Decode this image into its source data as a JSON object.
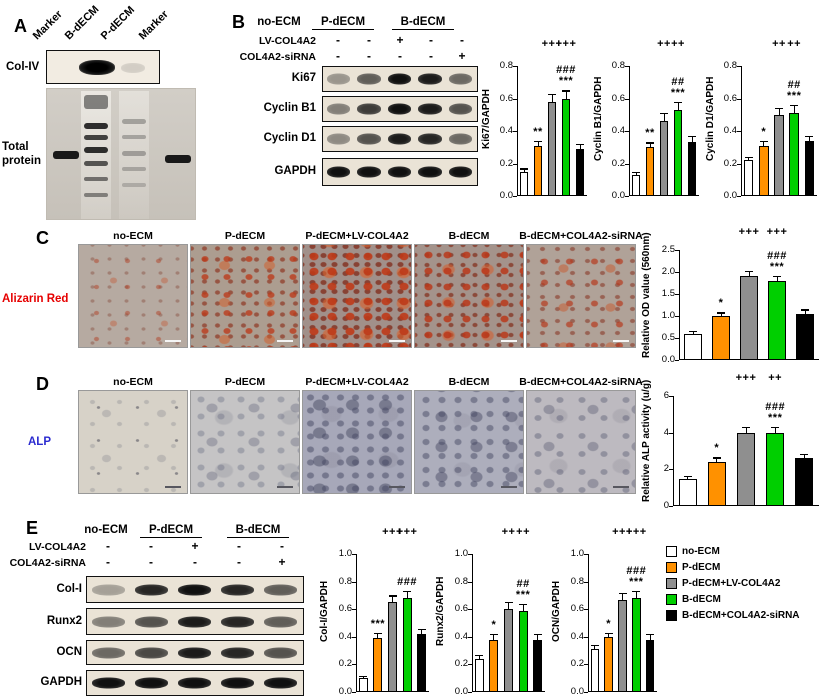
{
  "figure": {
    "conditions": [
      "no-ECM",
      "P-dECM",
      "P-dECM+LV-COL4A2",
      "B-dECM",
      "B-dECM+COL4A2-siRNA"
    ],
    "bar_colors": [
      "#ffffff",
      "#ff9100",
      "#8f8f8f",
      "#00cf00",
      "#000000"
    ],
    "panelA": {
      "label": "A",
      "lanes": [
        "Marker",
        "B-dECM",
        "P-dECM",
        "Marker"
      ],
      "blot_label": "Col-IV",
      "gel_label": "Total protein"
    },
    "panelB": {
      "label": "B",
      "group_headers": [
        "no-ECM",
        "P-dECM",
        "B-dECM"
      ],
      "treatments": [
        {
          "label": "LV-COL4A2",
          "symbols": [
            "-",
            "-",
            "+",
            "-",
            "-"
          ]
        },
        {
          "label": "COL4A2-siRNA",
          "symbols": [
            "-",
            "-",
            "-",
            "-",
            "+"
          ]
        }
      ],
      "blots": [
        {
          "label": "Ki67",
          "bands": [
            0.35,
            0.6,
            0.95,
            0.9,
            0.55
          ]
        },
        {
          "label": "Cyclin B1",
          "bands": [
            0.45,
            0.75,
            0.95,
            0.9,
            0.65
          ]
        },
        {
          "label": "Cyclin D1",
          "bands": [
            0.4,
            0.65,
            0.9,
            0.85,
            0.55
          ]
        },
        {
          "label": "GAPDH",
          "bands": [
            0.95,
            0.95,
            0.95,
            0.95,
            0.95
          ]
        }
      ]
    },
    "panelC": {
      "label": "C",
      "stain_label": "Alizarin Red",
      "stain_color": "#e60000"
    },
    "panelD": {
      "label": "D",
      "stain_label": "ALP",
      "stain_color": "#2b2bd0"
    },
    "panelE": {
      "label": "E",
      "group_headers": [
        "no-ECM",
        "P-dECM",
        "B-dECM"
      ],
      "treatments": [
        {
          "label": "LV-COL4A2",
          "symbols": [
            "-",
            "-",
            "+",
            "-",
            "-"
          ]
        },
        {
          "label": "COL4A2-siRNA",
          "symbols": [
            "-",
            "-",
            "-",
            "-",
            "+"
          ]
        }
      ],
      "blots": [
        {
          "label": "Col-I",
          "bands": [
            0.3,
            0.85,
            0.95,
            0.85,
            0.6
          ]
        },
        {
          "label": "Runx2",
          "bands": [
            0.45,
            0.65,
            0.9,
            0.85,
            0.6
          ]
        },
        {
          "label": "OCN",
          "bands": [
            0.55,
            0.7,
            0.9,
            0.85,
            0.65
          ]
        },
        {
          "label": "GAPDH",
          "bands": [
            0.95,
            0.95,
            0.95,
            0.95,
            0.95
          ]
        }
      ],
      "legend": [
        {
          "label": "no-ECM",
          "color": "#ffffff"
        },
        {
          "label": "P-dECM",
          "color": "#ff9100"
        },
        {
          "label": "P-dECM+LV-COL4A2",
          "color": "#8f8f8f"
        },
        {
          "label": "B-dECM",
          "color": "#00cf00"
        },
        {
          "label": "B-dECM+COL4A2-siRNA",
          "color": "#000000"
        }
      ]
    }
  },
  "chart_data": [
    {
      "id": "ki67",
      "type": "bar",
      "ylabel": "Ki67/GAPDH",
      "categories": [
        "no-ECM",
        "P-dECM",
        "P-dECM+LV-COL4A2",
        "B-dECM",
        "B-dECM+COL4A2-siRNA"
      ],
      "values": [
        0.15,
        0.31,
        0.58,
        0.6,
        0.29
      ],
      "errors": [
        0.02,
        0.03,
        0.05,
        0.05,
        0.03
      ],
      "ylim": [
        0,
        0.8
      ],
      "yticks": [
        "0.0",
        "0.2",
        "0.4",
        "0.6",
        "0.8"
      ],
      "stars": [
        "",
        "**",
        "",
        "***",
        ""
      ],
      "hash": {
        "text": "###",
        "bar": 3
      },
      "plus": [
        {
          "text": "+++",
          "bar": 2
        },
        {
          "text": "+++",
          "bar": 3
        }
      ]
    },
    {
      "id": "cyclinB1",
      "type": "bar",
      "ylabel": "Cyclin B1/GAPDH",
      "categories": [
        "no-ECM",
        "P-dECM",
        "P-dECM+LV-COL4A2",
        "B-dECM",
        "B-dECM+COL4A2-siRNA"
      ],
      "values": [
        0.13,
        0.3,
        0.46,
        0.53,
        0.33
      ],
      "errors": [
        0.02,
        0.03,
        0.05,
        0.05,
        0.04
      ],
      "ylim": [
        0,
        0.8
      ],
      "yticks": [
        "0.0",
        "0.2",
        "0.4",
        "0.6",
        "0.8"
      ],
      "stars": [
        "",
        "**",
        "",
        "***",
        ""
      ],
      "hash": {
        "text": "##",
        "bar": 3
      },
      "plus": [
        {
          "text": "++",
          "bar": 2
        },
        {
          "text": "++",
          "bar": 3
        }
      ]
    },
    {
      "id": "cyclinD1",
      "type": "bar",
      "ylabel": "Cyclin D1/GAPDH",
      "categories": [
        "no-ECM",
        "P-dECM",
        "P-dECM+LV-COL4A2",
        "B-dECM",
        "B-dECM+COL4A2-siRNA"
      ],
      "values": [
        0.22,
        0.31,
        0.5,
        0.51,
        0.34
      ],
      "errors": [
        0.02,
        0.03,
        0.04,
        0.05,
        0.03
      ],
      "ylim": [
        0,
        0.8
      ],
      "yticks": [
        "0.0",
        "0.2",
        "0.4",
        "0.6",
        "0.8"
      ],
      "stars": [
        "",
        "*",
        "",
        "***",
        ""
      ],
      "hash": {
        "text": "##",
        "bar": 3
      },
      "plus": [
        {
          "text": "++",
          "bar": 2
        },
        {
          "text": "++",
          "bar": 3
        }
      ]
    },
    {
      "id": "alizarin_od",
      "type": "bar",
      "ylabel": "Relative OD value (560nm)",
      "categories": [
        "no-ECM",
        "P-dECM",
        "P-dECM+LV-COL4A2",
        "B-dECM",
        "B-dECM+COL4A2-siRNA"
      ],
      "values": [
        0.6,
        1.0,
        1.9,
        1.8,
        1.05
      ],
      "errors": [
        0.06,
        0.08,
        0.12,
        0.12,
        0.1
      ],
      "ylim": [
        0,
        2.5
      ],
      "yticks": [
        "0.0",
        "0.5",
        "1.0",
        "1.5",
        "2.0",
        "2.5"
      ],
      "stars": [
        "",
        "*",
        "",
        "***",
        ""
      ],
      "hash": {
        "text": "###",
        "bar": 3
      },
      "plus": [
        {
          "text": "+++",
          "bar": 2
        },
        {
          "text": "+++",
          "bar": 3
        }
      ]
    },
    {
      "id": "alp_activity",
      "type": "bar",
      "ylabel": "Relative ALP activity (u/g)",
      "categories": [
        "no-ECM",
        "P-dECM",
        "P-dECM+LV-COL4A2",
        "B-dECM",
        "B-dECM+COL4A2-siRNA"
      ],
      "values": [
        1.5,
        2.4,
        4.0,
        4.0,
        2.6
      ],
      "errors": [
        0.15,
        0.25,
        0.3,
        0.3,
        0.25
      ],
      "ylim": [
        0,
        6
      ],
      "yticks": [
        "0",
        "2",
        "4",
        "6"
      ],
      "stars": [
        "",
        "*",
        "",
        "***",
        ""
      ],
      "hash": {
        "text": "###",
        "bar": 3
      },
      "plus": [
        {
          "text": "+++",
          "bar": 2
        },
        {
          "text": "++",
          "bar": 3
        }
      ]
    },
    {
      "id": "col1",
      "type": "bar",
      "ylabel": "Col-I/GAPDH",
      "categories": [
        "no-ECM",
        "P-dECM",
        "P-dECM+LV-COL4A2",
        "B-dECM",
        "B-dECM+COL4A2-siRNA"
      ],
      "values": [
        0.1,
        0.39,
        0.65,
        0.68,
        0.42
      ],
      "errors": [
        0.015,
        0.04,
        0.05,
        0.05,
        0.04
      ],
      "ylim": [
        0,
        1.0
      ],
      "yticks": [
        "0.0",
        "0.2",
        "0.4",
        "0.6",
        "0.8",
        "1.0"
      ],
      "stars": [
        "",
        "***",
        "",
        "",
        ""
      ],
      "hash": {
        "text": "###",
        "bar": 3
      },
      "plus": [
        {
          "text": "+++",
          "bar": 2
        },
        {
          "text": "+++",
          "bar": 3
        }
      ]
    },
    {
      "id": "runx2",
      "type": "bar",
      "ylabel": "Runx2/GAPDH",
      "categories": [
        "no-ECM",
        "P-dECM",
        "P-dECM+LV-COL4A2",
        "B-dECM",
        "B-dECM+COL4A2-siRNA"
      ],
      "values": [
        0.24,
        0.38,
        0.6,
        0.59,
        0.38
      ],
      "errors": [
        0.03,
        0.04,
        0.05,
        0.05,
        0.04
      ],
      "ylim": [
        0,
        1.0
      ],
      "yticks": [
        "0.0",
        "0.2",
        "0.4",
        "0.6",
        "0.8",
        "1.0"
      ],
      "stars": [
        "",
        "*",
        "",
        "***",
        ""
      ],
      "hash": {
        "text": "##",
        "bar": 3
      },
      "plus": [
        {
          "text": "++",
          "bar": 2
        },
        {
          "text": "++",
          "bar": 3
        }
      ]
    },
    {
      "id": "ocn",
      "type": "bar",
      "ylabel": "OCN/GAPDH",
      "categories": [
        "no-ECM",
        "P-dECM",
        "P-dECM+LV-COL4A2",
        "B-dECM",
        "B-dECM+COL4A2-siRNA"
      ],
      "values": [
        0.31,
        0.4,
        0.67,
        0.68,
        0.38
      ],
      "errors": [
        0.03,
        0.03,
        0.05,
        0.05,
        0.04
      ],
      "ylim": [
        0,
        1.0
      ],
      "yticks": [
        "0.0",
        "0.2",
        "0.4",
        "0.6",
        "0.8",
        "1.0"
      ],
      "stars": [
        "",
        "*",
        "",
        "***",
        ""
      ],
      "hash": {
        "text": "###",
        "bar": 3
      },
      "plus": [
        {
          "text": "+++",
          "bar": 2
        },
        {
          "text": "+++",
          "bar": 3
        }
      ]
    }
  ]
}
